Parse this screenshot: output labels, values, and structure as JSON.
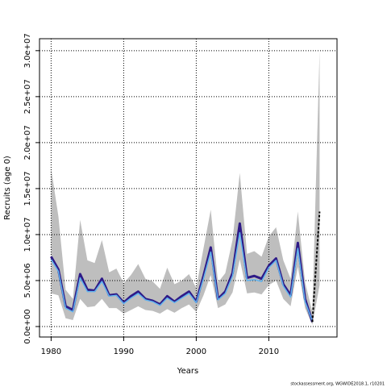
{
  "chart_data": {
    "type": "line",
    "xlabel": "Years",
    "ylabel": "Recruits (age 0)",
    "footnote": "stockassessment.org, WGWIDE2018.1, r10201",
    "x": [
      1980,
      1981,
      1982,
      1983,
      1984,
      1985,
      1986,
      1987,
      1988,
      1989,
      1990,
      1991,
      1992,
      1993,
      1994,
      1995,
      1996,
      1997,
      1998,
      1999,
      2000,
      2001,
      2002,
      2003,
      2004,
      2005,
      2006,
      2007,
      2008,
      2009,
      2010,
      2011,
      2012,
      2013,
      2014,
      2015,
      2016,
      2017
    ],
    "xlim": [
      1978.4,
      2019.4
    ],
    "ylim": [
      -1140000,
      31300000
    ],
    "xticks": [
      1980,
      1990,
      2000,
      2010
    ],
    "yticks": [
      {
        "value": 0,
        "label": "0.0e+00"
      },
      {
        "value": 5000000,
        "label": "5.0e+06"
      },
      {
        "value": 10000000,
        "label": "1.0e+07"
      },
      {
        "value": 15000000,
        "label": "1.5e+07"
      },
      {
        "value": 20000000,
        "label": "2.0e+07"
      },
      {
        "value": 25000000,
        "label": "2.5e+07"
      },
      {
        "value": 30000000,
        "label": "3.0e+07"
      }
    ],
    "grid": true,
    "band": {
      "color": "#bebebe",
      "upper": [
        17200000,
        12000000,
        4000000,
        3000000,
        11600000,
        7200000,
        6900000,
        9400000,
        5900000,
        6300000,
        4700000,
        5600000,
        6800000,
        5200000,
        4900000,
        4100000,
        6400000,
        4600000,
        5000000,
        5700000,
        4200000,
        8500000,
        12700000,
        4800000,
        5800000,
        9400000,
        16700000,
        7900000,
        8200000,
        7600000,
        9800000,
        10800000,
        7200000,
        5200000,
        12500000,
        4800000,
        1600000,
        30000000
      ],
      "lower": [
        3600000,
        3400000,
        900000,
        700000,
        3000000,
        2100000,
        2200000,
        3000000,
        2000000,
        2000000,
        1400000,
        1800000,
        2200000,
        1800000,
        1700000,
        1400000,
        1900000,
        1500000,
        2000000,
        2400000,
        1600000,
        3400000,
        5600000,
        2000000,
        2400000,
        3700000,
        7300000,
        3600000,
        3700000,
        3500000,
        4500000,
        5000000,
        3000000,
        2200000,
        6500000,
        2000000,
        200000,
        4500000
      ]
    },
    "series": [
      {
        "color": "#2e1a87",
        "width": 3,
        "dash": false,
        "values": [
          7600000,
          6200000,
          2200000,
          1800000,
          5700000,
          4000000,
          3900000,
          5200000,
          3400000,
          3500000,
          2600000,
          3300000,
          3800000,
          3000000,
          2800000,
          2400000,
          3300000,
          2700000,
          3300000,
          3800000,
          2700000,
          5500000,
          8600000,
          3000000,
          3800000,
          5800000,
          11200000,
          5300000,
          5500000,
          5200000,
          6600000,
          7400000,
          4600000,
          3400000,
          9100000,
          3000000,
          500000,
          null
        ]
      },
      {
        "color": "#5fb3ef",
        "width": 1.5,
        "dash": false,
        "values": [
          7300000,
          6000000,
          2000000,
          1600000,
          5300000,
          3800000,
          3800000,
          4900000,
          3300000,
          3400000,
          2500000,
          3100000,
          3600000,
          2900000,
          2700000,
          2300000,
          3100000,
          2600000,
          3100000,
          3600000,
          2600000,
          5200000,
          8100000,
          2900000,
          3600000,
          5500000,
          10200000,
          5000000,
          5100000,
          4900000,
          6400000,
          7200000,
          4400000,
          3200000,
          8500000,
          2700000,
          600000,
          null
        ]
      },
      {
        "color": "#000000",
        "width": 2,
        "dash": true,
        "values": [
          null,
          null,
          null,
          null,
          null,
          null,
          null,
          null,
          null,
          null,
          null,
          null,
          null,
          null,
          null,
          null,
          null,
          null,
          null,
          null,
          null,
          null,
          null,
          null,
          null,
          null,
          null,
          null,
          null,
          null,
          null,
          null,
          null,
          null,
          null,
          null,
          500000,
          12500000
        ]
      }
    ]
  }
}
